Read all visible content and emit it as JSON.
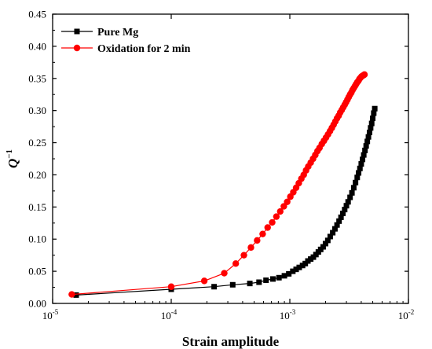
{
  "chart_data": {
    "type": "scatter",
    "xlabel": "Strain amplitude",
    "ylabel_main": "Q",
    "ylabel_sup": "−1",
    "x_scale": "log",
    "xlim": [
      1e-05,
      0.01
    ],
    "ylim": [
      0,
      0.45
    ],
    "x_ticks": [
      {
        "value": 1e-05,
        "base": "10",
        "exp": "-5"
      },
      {
        "value": 0.0001,
        "base": "10",
        "exp": "-4"
      },
      {
        "value": 0.001,
        "base": "10",
        "exp": "-3"
      },
      {
        "value": 0.01,
        "base": "10",
        "exp": "-2"
      }
    ],
    "y_ticks": [
      "0.00",
      "0.05",
      "0.10",
      "0.15",
      "0.20",
      "0.25",
      "0.30",
      "0.35",
      "0.40",
      "0.45"
    ],
    "grid": false,
    "legend_position": "top-left",
    "series": [
      {
        "name": "Pure Mg",
        "color": "#000000",
        "marker": "square",
        "x": [
          1.58e-05,
          0.0001,
          0.00023,
          0.00033,
          0.00046,
          0.00055,
          0.00063,
          0.00072,
          0.00081,
          0.0009,
          0.00098,
          0.00106,
          0.00113,
          0.0012,
          0.00128,
          0.00135,
          0.00142,
          0.0015,
          0.00158,
          0.00166,
          0.00174,
          0.00182,
          0.00191,
          0.002,
          0.00209,
          0.00219,
          0.0023,
          0.0024,
          0.0025,
          0.0026,
          0.0027,
          0.0028,
          0.0029,
          0.003,
          0.0031,
          0.00322,
          0.00334,
          0.00346,
          0.00358,
          0.0037,
          0.0038,
          0.0039,
          0.004,
          0.0041,
          0.0042,
          0.0043,
          0.0044,
          0.0045,
          0.0046,
          0.0047,
          0.0048,
          0.0049,
          0.005,
          0.0051,
          0.0052
        ],
        "y": [
          0.013,
          0.022,
          0.026,
          0.029,
          0.031,
          0.033,
          0.036,
          0.038,
          0.04,
          0.043,
          0.046,
          0.05,
          0.053,
          0.056,
          0.059,
          0.062,
          0.066,
          0.069,
          0.072,
          0.076,
          0.08,
          0.084,
          0.088,
          0.093,
          0.098,
          0.104,
          0.11,
          0.116,
          0.122,
          0.128,
          0.134,
          0.14,
          0.146,
          0.152,
          0.158,
          0.165,
          0.172,
          0.18,
          0.188,
          0.196,
          0.203,
          0.21,
          0.217,
          0.224,
          0.231,
          0.238,
          0.245,
          0.252,
          0.259,
          0.266,
          0.273,
          0.28,
          0.288,
          0.296,
          0.303
        ]
      },
      {
        "name": "Oxidation for 2 min",
        "color": "#ff0000",
        "marker": "circle",
        "x": [
          1.45e-05,
          0.0001,
          0.00019,
          0.00028,
          0.00035,
          0.00041,
          0.00047,
          0.00053,
          0.00059,
          0.00065,
          0.00071,
          0.00077,
          0.00083,
          0.00089,
          0.00095,
          0.00101,
          0.00107,
          0.00113,
          0.00119,
          0.00125,
          0.00131,
          0.00137,
          0.00143,
          0.0015,
          0.00157,
          0.00164,
          0.00171,
          0.00178,
          0.00186,
          0.00194,
          0.00202,
          0.0021,
          0.00218,
          0.00226,
          0.00234,
          0.00242,
          0.0025,
          0.00258,
          0.00266,
          0.00274,
          0.00282,
          0.0029,
          0.00298,
          0.00306,
          0.00314,
          0.00322,
          0.0033,
          0.00338,
          0.00346,
          0.00354,
          0.00362,
          0.0037,
          0.00378,
          0.00386,
          0.00394,
          0.00402,
          0.0041,
          0.00418,
          0.00426
        ],
        "y": [
          0.014,
          0.026,
          0.035,
          0.047,
          0.062,
          0.075,
          0.087,
          0.098,
          0.108,
          0.118,
          0.126,
          0.135,
          0.143,
          0.151,
          0.158,
          0.166,
          0.173,
          0.18,
          0.187,
          0.194,
          0.2,
          0.207,
          0.213,
          0.219,
          0.225,
          0.231,
          0.237,
          0.242,
          0.248,
          0.253,
          0.258,
          0.263,
          0.268,
          0.273,
          0.278,
          0.283,
          0.288,
          0.292,
          0.297,
          0.301,
          0.305,
          0.309,
          0.313,
          0.317,
          0.321,
          0.325,
          0.328,
          0.332,
          0.335,
          0.338,
          0.341,
          0.344,
          0.346,
          0.349,
          0.351,
          0.353,
          0.354,
          0.355,
          0.356
        ]
      }
    ]
  }
}
